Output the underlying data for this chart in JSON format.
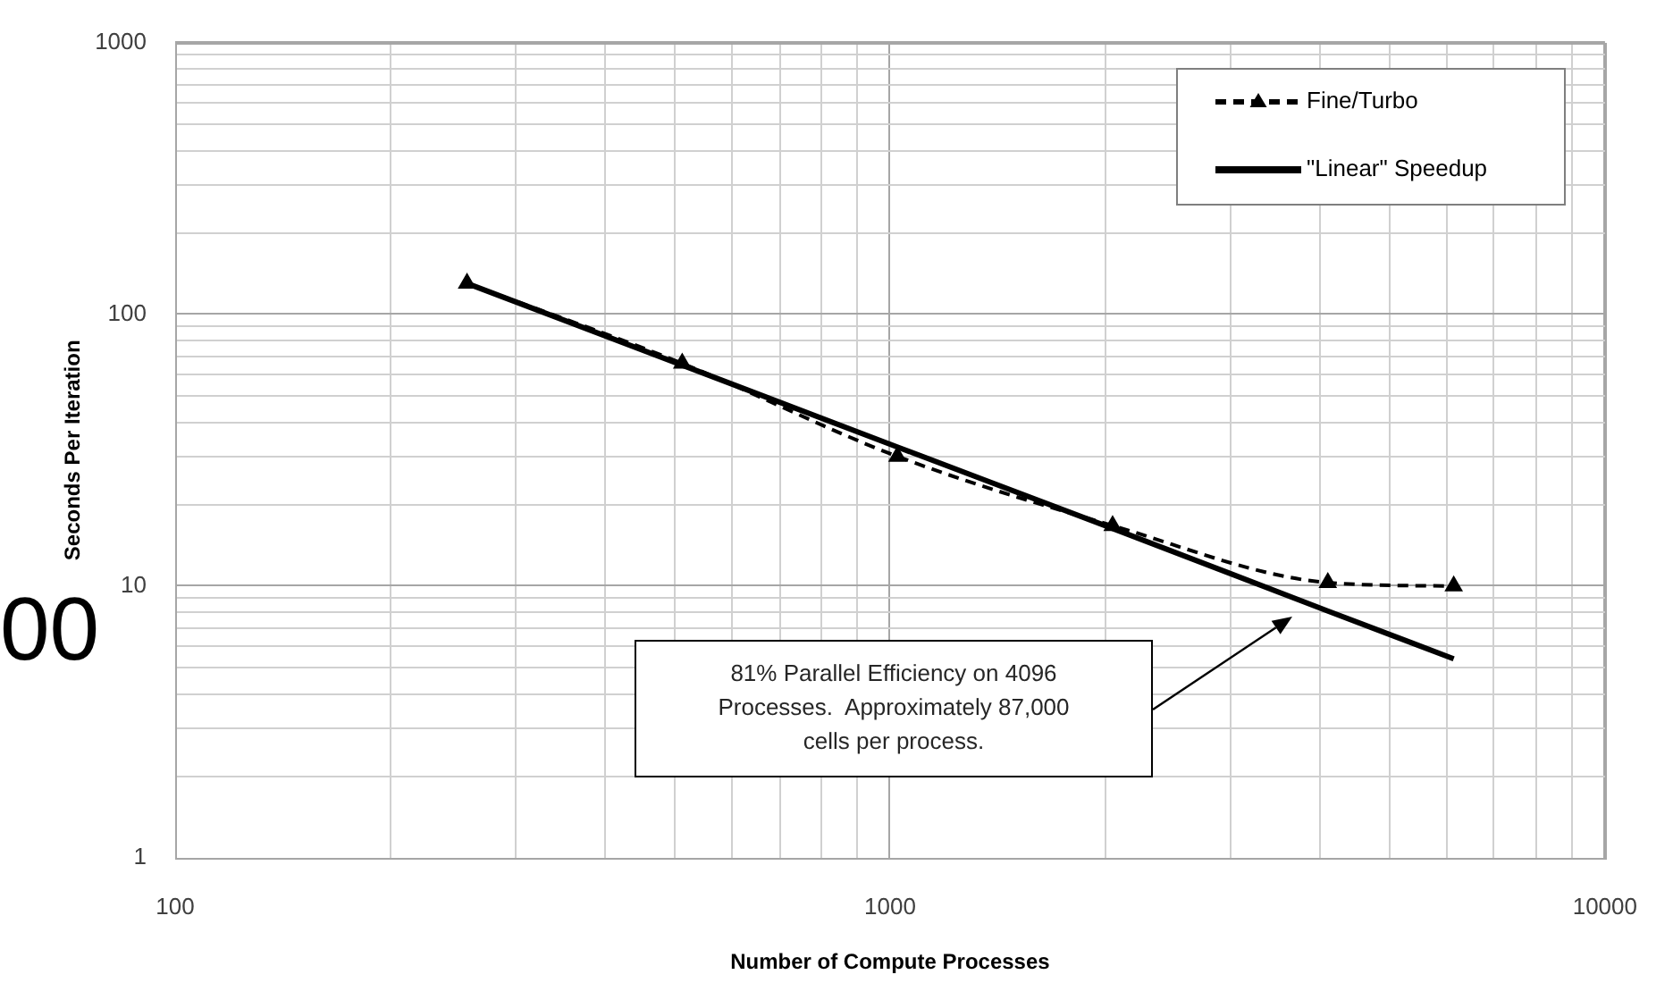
{
  "chart_data": {
    "type": "line",
    "xlabel": "Number of Compute Processes",
    "ylabel": "Seconds Per Iteration",
    "x": [
      256,
      512,
      1024,
      2048,
      4096,
      6144
    ],
    "series": [
      {
        "name": "Fine/Turbo",
        "color": "#000000",
        "values": [
          130,
          66,
          30,
          16.7,
          10.3,
          10.0
        ],
        "marker": "triangle",
        "line_style": "dashed"
      },
      {
        "name": "\"Linear\" Speedup",
        "color": "#000000",
        "values": [
          130,
          65,
          32.5,
          16.3,
          8.1,
          5.4
        ],
        "marker": "none",
        "line_style": "solid"
      }
    ],
    "log": "xy",
    "xlim": [
      100,
      10000
    ],
    "ylim": [
      1,
      1000
    ],
    "xticks": [
      100,
      {
        "value": 200,
        "label": null
      },
      {
        "value": 300,
        "label": null
      },
      {
        "value": 400,
        "label": null
      },
      {
        "value": 500,
        "label": null
      },
      {
        "value": 600,
        "label": null
      },
      {
        "value": 700,
        "label": null
      },
      {
        "value": 800,
        "label": null
      },
      {
        "value": 900,
        "label": null
      },
      1000,
      {
        "value": 2000,
        "label": null
      },
      {
        "value": 3000,
        "label": null
      },
      {
        "value": 4000,
        "label": null
      },
      {
        "value": 5000,
        "label": null
      },
      {
        "value": 6000,
        "label": null
      },
      {
        "value": 7000,
        "label": null
      },
      {
        "value": 8000,
        "label": null
      },
      {
        "value": 9000,
        "label": null
      },
      10000
    ],
    "yticks": [
      1,
      {
        "value": 2,
        "label": null
      },
      {
        "value": 3,
        "label": null
      },
      {
        "value": 4,
        "label": null
      },
      {
        "value": 5,
        "label": null
      },
      {
        "value": 6,
        "label": null
      },
      {
        "value": 7,
        "label": null
      },
      {
        "value": 8,
        "label": null
      },
      {
        "value": 9,
        "label": null
      },
      10,
      {
        "value": 20,
        "label": null
      },
      {
        "value": 30,
        "label": null
      },
      {
        "value": 40,
        "label": null
      },
      {
        "value": 50,
        "label": null
      },
      {
        "value": 60,
        "label": null
      },
      {
        "value": 70,
        "label": null
      },
      {
        "value": 80,
        "label": null
      },
      {
        "value": 90,
        "label": null
      },
      100,
      {
        "value": 200,
        "label": null
      },
      {
        "value": 300,
        "label": null
      },
      {
        "value": 400,
        "label": null
      },
      {
        "value": 500,
        "label": null
      },
      {
        "value": 600,
        "label": null
      },
      {
        "value": 700,
        "label": null
      },
      {
        "value": 800,
        "label": null
      },
      {
        "value": 900,
        "label": null
      },
      1000
    ],
    "grid": true,
    "legend": "top right",
    "annotations": [
      "81% Parallel Efficiency on 4096 Processes.  Approximately 87,000 cells per process.",
      "00"
    ]
  }
}
